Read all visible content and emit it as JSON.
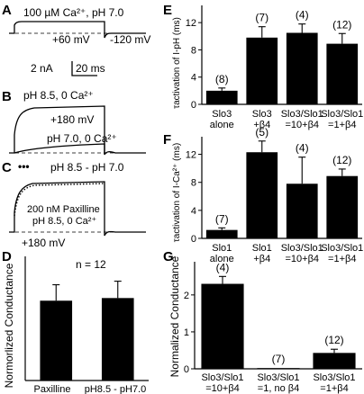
{
  "panels": {
    "A": {
      "letter": "A",
      "condition": "100 µM Ca²⁺, pH 7.0",
      "v_step": "+60 mV",
      "v_hold": "-120 mV",
      "scale_current": "2 nA",
      "scale_time": "20 ms"
    },
    "B": {
      "letter": "B",
      "condition": "pH 8.5, 0 Ca²⁺",
      "v_step": "+180 mV",
      "trace2_label": "pH 7.0, 0 Ca²⁺"
    },
    "C": {
      "letter": "C",
      "legend_marker": "•••",
      "condition": "pH 8.5 - pH 7.0",
      "note_line1": "200 nM Paxilline",
      "note_line2": "pH 8.5, 0 Ca²⁺",
      "v_step": "+180 mV"
    }
  },
  "chart_data": [
    {
      "panel": "D",
      "type": "bar",
      "categories": [
        "Paxilline",
        "pH8.5 - pH7.0"
      ],
      "values": [
        0.45,
        0.465
      ],
      "errors": [
        0.09,
        0.095
      ],
      "ylabel": "Normorlized Conductance",
      "annotation": "n = 12",
      "ylim": [
        0,
        0.7
      ]
    },
    {
      "panel": "E",
      "type": "bar",
      "category_lines": [
        [
          "Slo3",
          "alone"
        ],
        [
          "Slo3",
          "+β4"
        ],
        [
          "Slo3/Slo1",
          "=10+β4"
        ],
        [
          "Slo3/Slo1",
          "=1+β4"
        ]
      ],
      "values": [
        2.0,
        9.8,
        10.5,
        8.9
      ],
      "errors": [
        0.4,
        1.6,
        1.3,
        1.5
      ],
      "n_labels": [
        "(8)",
        "(7)",
        "(4)",
        "(12)"
      ],
      "ylabel": "τactivation of I-pH (ms)",
      "yticks": [
        0,
        4,
        8,
        12
      ],
      "ylim": [
        0,
        14
      ]
    },
    {
      "panel": "F",
      "type": "bar",
      "category_lines": [
        [
          "Slo1",
          "alone"
        ],
        [
          "Slo1",
          "+β4"
        ],
        [
          "Slo3/Slo1",
          "=10+β4"
        ],
        [
          "Slo3/Slo1",
          "=1+β4"
        ]
      ],
      "values": [
        1.2,
        12.3,
        7.8,
        8.9
      ],
      "errors": [
        0.3,
        1.6,
        3.8,
        1.0
      ],
      "n_labels": [
        "(7)",
        "(5)",
        "(4)",
        "(12)"
      ],
      "ylabel": "τactivation of I-Ca²⁺ (ms)",
      "yticks": [
        0,
        4,
        8,
        12
      ],
      "ylim": [
        0,
        14
      ]
    },
    {
      "panel": "G",
      "type": "bar",
      "category_lines": [
        [
          "Slo3/Slo1",
          "=10+β4"
        ],
        [
          "Slo3/Slo1",
          "=1, no β4"
        ],
        [
          "Slo3/Slo1",
          "=1+β4"
        ]
      ],
      "values": [
        2.3,
        0.02,
        0.43
      ],
      "errors": [
        0.2,
        0.0,
        0.1
      ],
      "n_labels": [
        "(4)",
        "(7)",
        "(12)"
      ],
      "ylabel": "Normalized Conductance",
      "yticks": [
        0,
        1,
        2
      ],
      "ylim": [
        0,
        2.8
      ]
    }
  ]
}
